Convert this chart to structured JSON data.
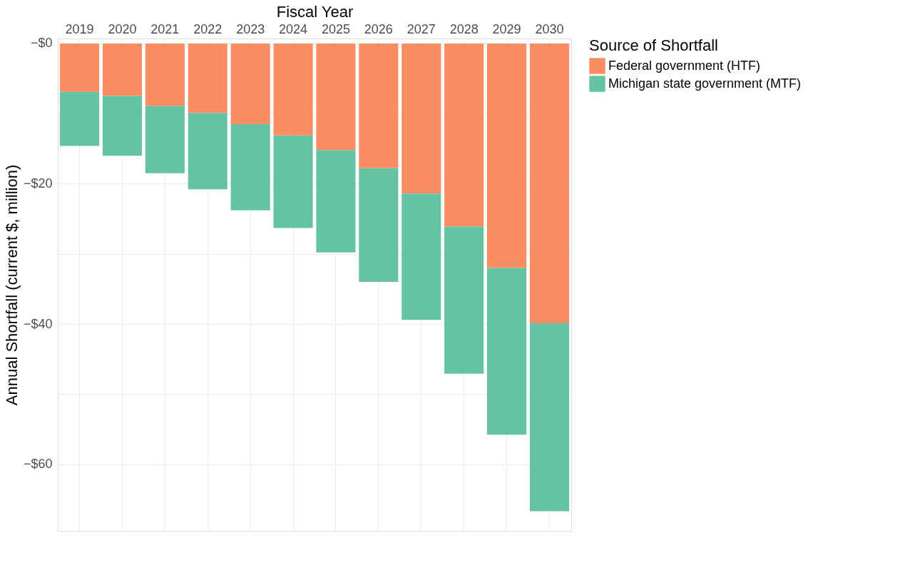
{
  "chart_data": {
    "type": "bar",
    "stacked": true,
    "xlabel": "Fiscal Year",
    "ylabel": "Annual Shortfall (current $, million)",
    "legend_title": "Source of Shortfall",
    "legend": "right",
    "grid": true,
    "categories": [
      "2019",
      "2020",
      "2021",
      "2022",
      "2023",
      "2024",
      "2025",
      "2026",
      "2027",
      "2028",
      "2029",
      "2030"
    ],
    "series": [
      {
        "name": "Federal government (HTF)",
        "color": "#fc8d62",
        "values": [
          -6.9,
          -7.5,
          -8.9,
          -9.9,
          -11.5,
          -13.1,
          -15.2,
          -17.8,
          -21.4,
          -26.1,
          -32.0,
          -39.9
        ]
      },
      {
        "name": "Michigan state government (MTF)",
        "color": "#66c2a5",
        "values": [
          -7.7,
          -8.5,
          -9.6,
          -10.9,
          -12.3,
          -13.2,
          -14.6,
          -16.2,
          -18.0,
          -21.0,
          -23.8,
          -26.8
        ]
      }
    ],
    "ylim": [
      -69.5,
      0.7
    ],
    "yticks": [
      {
        "value": 0,
        "label": "−$0"
      },
      {
        "value": -10,
        "label": null
      },
      {
        "value": -20,
        "label": "−$20"
      },
      {
        "value": -30,
        "label": null
      },
      {
        "value": -40,
        "label": "−$40"
      },
      {
        "value": -50,
        "label": null
      },
      {
        "value": -60,
        "label": "−$60"
      }
    ]
  }
}
